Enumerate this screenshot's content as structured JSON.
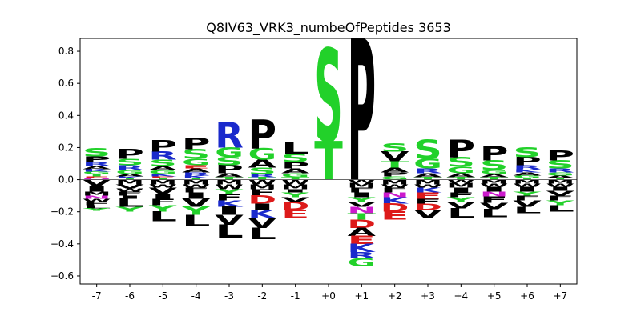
{
  "chart_data": {
    "type": "sequence-logo",
    "title": "Q8IV63_VRK3_numbeOfPeptides 3653",
    "ylim": [
      -0.65,
      0.88
    ],
    "yticks": [
      0.8,
      0.6,
      0.4,
      0.2,
      0.0,
      -0.2,
      -0.4,
      -0.6
    ],
    "ytick_labels": [
      "0.8",
      "0.6",
      "0.4",
      "0.2",
      "0.0",
      "−0.2",
      "−0.4",
      "−0.6"
    ],
    "positions": [
      "-7",
      "-6",
      "-5",
      "-4",
      "-3",
      "-2",
      "-1",
      "+0",
      "+1",
      "+2",
      "+3",
      "+4",
      "+5",
      "+6",
      "+7"
    ],
    "colors": {
      "black": "#000000",
      "green": "#22d12a",
      "blue": "#1a2acc",
      "red": "#dd1a1a",
      "magenta": "#cc1acc"
    },
    "letter_colors": {
      "S": "green",
      "T": "green",
      "G": "green",
      "Y": "green",
      "C": "green",
      "N": "magenta",
      "Q": "magenta",
      "R": "blue",
      "K": "blue",
      "H": "blue",
      "D": "red",
      "E": "red",
      "P": "black",
      "A": "black",
      "V": "black",
      "L": "black",
      "I": "black",
      "M": "black",
      "F": "black",
      "W": "black"
    },
    "stacks": [
      {
        "pos": "-7",
        "up": [
          [
            "S",
            0.05
          ],
          [
            "P",
            0.035
          ],
          [
            "R",
            0.025
          ],
          [
            "A",
            0.02
          ],
          [
            "K",
            0.015
          ],
          [
            "G",
            0.015
          ],
          [
            "T",
            0.015
          ],
          [
            "E",
            0.01
          ],
          [
            "Q",
            0.01
          ]
        ],
        "down": [
          [
            "V",
            0.04
          ],
          [
            "I",
            0.035
          ],
          [
            "M",
            0.025
          ],
          [
            "N",
            0.02
          ],
          [
            "W",
            0.02
          ],
          [
            "F",
            0.02
          ],
          [
            "L",
            0.02
          ],
          [
            "Y",
            0.015
          ]
        ]
      },
      {
        "pos": "-6",
        "up": [
          [
            "P",
            0.06
          ],
          [
            "S",
            0.04
          ],
          [
            "R",
            0.03
          ],
          [
            "G",
            0.025
          ],
          [
            "A",
            0.015
          ],
          [
            "K",
            0.01
          ],
          [
            "T",
            0.01
          ]
        ],
        "down": [
          [
            "M",
            0.03
          ],
          [
            "V",
            0.025
          ],
          [
            "W",
            0.02
          ],
          [
            "F",
            0.025
          ],
          [
            "I",
            0.02
          ],
          [
            "L",
            0.05
          ],
          [
            "Y",
            0.03
          ]
        ]
      },
      {
        "pos": "-5",
        "up": [
          [
            "P",
            0.07
          ],
          [
            "R",
            0.05
          ],
          [
            "S",
            0.04
          ],
          [
            "A",
            0.025
          ],
          [
            "G",
            0.025
          ],
          [
            "K",
            0.015
          ],
          [
            "E",
            0.01
          ],
          [
            "T",
            0.01
          ]
        ],
        "down": [
          [
            "M",
            0.03
          ],
          [
            "W",
            0.02
          ],
          [
            "V",
            0.04
          ],
          [
            "I",
            0.03
          ],
          [
            "F",
            0.04
          ],
          [
            "Y",
            0.04
          ],
          [
            "L",
            0.06
          ]
        ]
      },
      {
        "pos": "-4",
        "up": [
          [
            "P",
            0.07
          ],
          [
            "S",
            0.06
          ],
          [
            "G",
            0.04
          ],
          [
            "E",
            0.02
          ],
          [
            "A",
            0.025
          ],
          [
            "R",
            0.02
          ],
          [
            "K",
            0.015
          ],
          [
            "T",
            0.01
          ]
        ],
        "down": [
          [
            "M",
            0.03
          ],
          [
            "W",
            0.02
          ],
          [
            "F",
            0.03
          ],
          [
            "I",
            0.04
          ],
          [
            "V",
            0.05
          ],
          [
            "Y",
            0.05
          ],
          [
            "L",
            0.07
          ]
        ]
      },
      {
        "pos": "-3",
        "up": [
          [
            "R",
            0.16
          ],
          [
            "G",
            0.06
          ],
          [
            "S",
            0.05
          ],
          [
            "P",
            0.05
          ],
          [
            "A",
            0.025
          ],
          [
            "T",
            0.015
          ]
        ],
        "down": [
          [
            "M",
            0.03
          ],
          [
            "W",
            0.03
          ],
          [
            "Y",
            0.03
          ],
          [
            "F",
            0.04
          ],
          [
            "K",
            0.04
          ],
          [
            "I",
            0.05
          ],
          [
            "V",
            0.06
          ],
          [
            "L",
            0.08
          ]
        ]
      },
      {
        "pos": "-2",
        "up": [
          [
            "P",
            0.18
          ],
          [
            "G",
            0.07
          ],
          [
            "A",
            0.05
          ],
          [
            "S",
            0.04
          ],
          [
            "R",
            0.02
          ],
          [
            "T",
            0.015
          ]
        ],
        "down": [
          [
            "W",
            0.03
          ],
          [
            "M",
            0.03
          ],
          [
            "F",
            0.04
          ],
          [
            "D",
            0.05
          ],
          [
            "I",
            0.04
          ],
          [
            "K",
            0.05
          ],
          [
            "V",
            0.06
          ],
          [
            "L",
            0.07
          ]
        ]
      },
      {
        "pos": "-1",
        "up": [
          [
            "L",
            0.07
          ],
          [
            "S",
            0.05
          ],
          [
            "P",
            0.04
          ],
          [
            "A",
            0.03
          ],
          [
            "G",
            0.025
          ],
          [
            "T",
            0.015
          ]
        ],
        "down": [
          [
            "W",
            0.03
          ],
          [
            "M",
            0.03
          ],
          [
            "I",
            0.02
          ],
          [
            "Y",
            0.03
          ],
          [
            "V",
            0.03
          ],
          [
            "D",
            0.05
          ],
          [
            "E",
            0.05
          ]
        ]
      },
      {
        "pos": "+0",
        "up": [
          [
            "S",
            0.58
          ],
          [
            "T",
            0.24
          ]
        ],
        "down": []
      },
      {
        "pos": "+1",
        "up": [
          [
            "P",
            0.88
          ]
        ],
        "down": [
          [
            "W",
            0.02
          ],
          [
            "M",
            0.03
          ],
          [
            "F",
            0.03
          ],
          [
            "I",
            0.03
          ],
          [
            "Y",
            0.03
          ],
          [
            "V",
            0.03
          ],
          [
            "N",
            0.04
          ],
          [
            "T",
            0.04
          ],
          [
            "D",
            0.05
          ],
          [
            "A",
            0.05
          ],
          [
            "E",
            0.05
          ],
          [
            "K",
            0.05
          ],
          [
            "R",
            0.04
          ],
          [
            "G",
            0.05
          ]
        ]
      },
      {
        "pos": "+2",
        "up": [
          [
            "S",
            0.05
          ],
          [
            "V",
            0.06
          ],
          [
            "T",
            0.04
          ],
          [
            "A",
            0.03
          ],
          [
            "P",
            0.025
          ],
          [
            "G",
            0.02
          ]
        ],
        "down": [
          [
            "M",
            0.03
          ],
          [
            "W",
            0.02
          ],
          [
            "F",
            0.03
          ],
          [
            "N",
            0.03
          ],
          [
            "K",
            0.04
          ],
          [
            "D",
            0.05
          ],
          [
            "E",
            0.05
          ]
        ]
      },
      {
        "pos": "+3",
        "up": [
          [
            "S",
            0.12
          ],
          [
            "G",
            0.06
          ],
          [
            "R",
            0.03
          ],
          [
            "A",
            0.025
          ],
          [
            "T",
            0.015
          ]
        ],
        "down": [
          [
            "M",
            0.03
          ],
          [
            "W",
            0.02
          ],
          [
            "K",
            0.03
          ],
          [
            "E",
            0.04
          ],
          [
            "F",
            0.03
          ],
          [
            "D",
            0.04
          ],
          [
            "V",
            0.05
          ]
        ]
      },
      {
        "pos": "+4",
        "up": [
          [
            "P",
            0.11
          ],
          [
            "S",
            0.06
          ],
          [
            "G",
            0.04
          ],
          [
            "A",
            0.025
          ],
          [
            "T",
            0.015
          ]
        ],
        "down": [
          [
            "W",
            0.02
          ],
          [
            "M",
            0.03
          ],
          [
            "I",
            0.03
          ],
          [
            "F",
            0.03
          ],
          [
            "Y",
            0.03
          ],
          [
            "V",
            0.04
          ],
          [
            "L",
            0.06
          ]
        ]
      },
      {
        "pos": "+5",
        "up": [
          [
            "P",
            0.09
          ],
          [
            "S",
            0.06
          ],
          [
            "G",
            0.025
          ],
          [
            "A",
            0.02
          ],
          [
            "T",
            0.015
          ]
        ],
        "down": [
          [
            "M",
            0.025
          ],
          [
            "W",
            0.02
          ],
          [
            "I",
            0.03
          ],
          [
            "N",
            0.03
          ],
          [
            "F",
            0.04
          ],
          [
            "V",
            0.04
          ],
          [
            "L",
            0.05
          ]
        ]
      },
      {
        "pos": "+6",
        "up": [
          [
            "S",
            0.06
          ],
          [
            "P",
            0.05
          ],
          [
            "R",
            0.025
          ],
          [
            "K",
            0.02
          ],
          [
            "A",
            0.02
          ],
          [
            "G",
            0.015
          ],
          [
            "T",
            0.01
          ]
        ],
        "down": [
          [
            "M",
            0.025
          ],
          [
            "W",
            0.02
          ],
          [
            "I",
            0.03
          ],
          [
            "Y",
            0.025
          ],
          [
            "F",
            0.03
          ],
          [
            "V",
            0.04
          ],
          [
            "L",
            0.04
          ]
        ]
      },
      {
        "pos": "+7",
        "up": [
          [
            "P",
            0.06
          ],
          [
            "S",
            0.05
          ],
          [
            "R",
            0.025
          ],
          [
            "G",
            0.02
          ],
          [
            "A",
            0.015
          ],
          [
            "T",
            0.01
          ]
        ],
        "down": [
          [
            "M",
            0.025
          ],
          [
            "W",
            0.02
          ],
          [
            "I",
            0.025
          ],
          [
            "V",
            0.03
          ],
          [
            "F",
            0.03
          ],
          [
            "Y",
            0.03
          ],
          [
            "L",
            0.04
          ]
        ]
      }
    ]
  }
}
